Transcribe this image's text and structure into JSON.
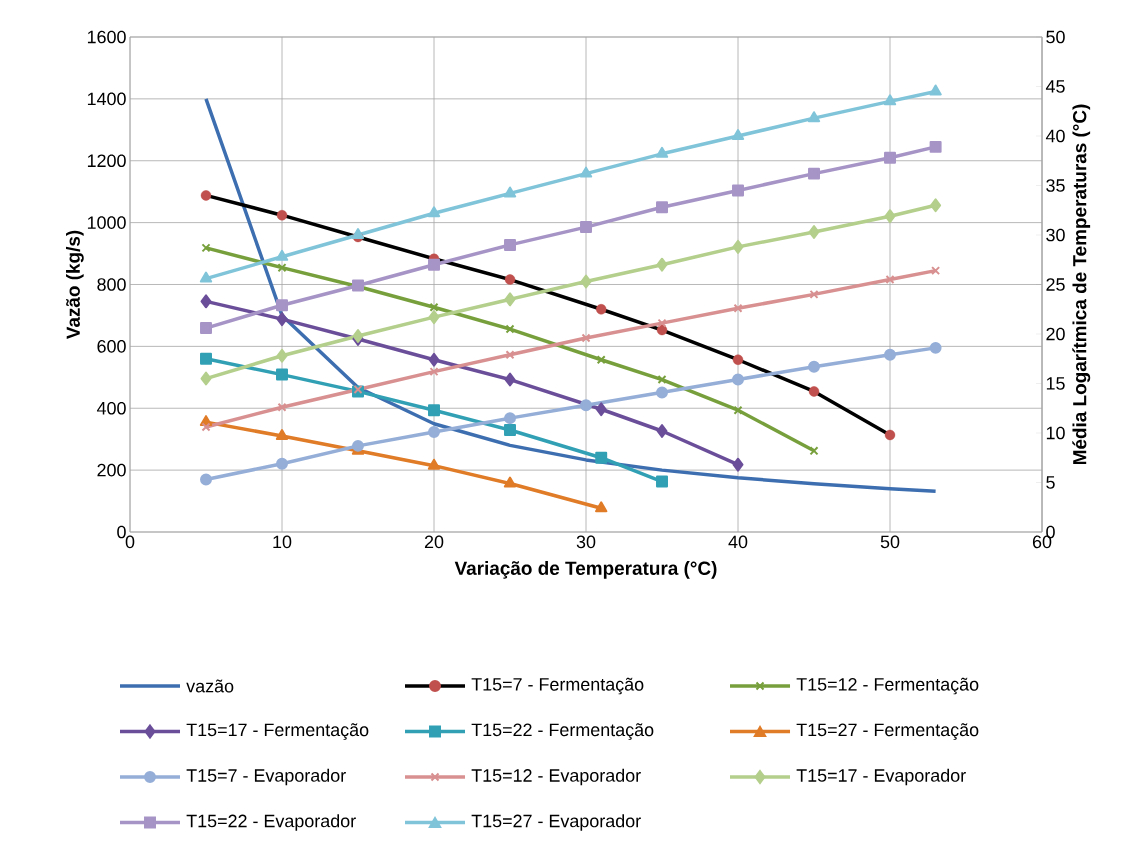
{
  "chart_data": {
    "type": "line",
    "xlabel": "Variação de Temperatura (°C)",
    "ylabel": "Vazão (kg/s)",
    "y2label": "Média Logarítmica de Temperaturas (°C)",
    "xlim": [
      0,
      60
    ],
    "xticks": [
      0,
      10,
      20,
      30,
      40,
      50,
      60
    ],
    "ylim": [
      0,
      1600
    ],
    "yticks": [
      0,
      200,
      400,
      600,
      800,
      1000,
      1200,
      1400,
      1600
    ],
    "y2lim": [
      0,
      50
    ],
    "y2ticks": [
      0,
      5,
      10,
      15,
      20,
      25,
      30,
      35,
      40,
      45,
      50
    ],
    "grid": true,
    "legend": "bottom",
    "x": [
      5,
      10,
      15,
      20,
      25,
      30,
      35,
      40,
      45,
      50,
      53
    ],
    "series": [
      {
        "name": "vazão",
        "color": "#3d6fb0",
        "marker": "none",
        "values": [
          1400,
          700,
          467,
          350,
          280,
          233,
          200,
          175,
          156,
          140,
          132
        ]
      },
      {
        "name": "T15=7 - Fermentação",
        "color": "#000000",
        "colors": [
          "#c0504d",
          "#c0504d",
          "#c0504d",
          "#c0504d",
          "#c0504d",
          "#c0504d",
          "#c0504d",
          "#c0504d",
          "#c0504d",
          "#c0504d"
        ],
        "marker": "circle",
        "axis": "y2",
        "x": [
          5,
          10,
          15,
          20,
          25,
          31,
          35,
          40,
          45,
          50
        ],
        "values": [
          34.0,
          32.0,
          29.8,
          27.6,
          25.5,
          22.5,
          20.4,
          17.4,
          14.2,
          9.8
        ]
      },
      {
        "name": "T15=12 - Fermentação",
        "color": "#77a03c",
        "marker": "cross",
        "axis": "y2",
        "x": [
          5,
          10,
          15,
          20,
          25,
          31,
          35,
          40,
          45
        ],
        "values": [
          28.7,
          26.7,
          24.8,
          22.7,
          20.5,
          17.4,
          15.4,
          12.3,
          8.2
        ]
      },
      {
        "name": "T15=17 - Fermentação",
        "color": "#6b4e9a",
        "marker": "diamond",
        "axis": "y2",
        "x": [
          5,
          10,
          15,
          20,
          25,
          31,
          35,
          40
        ],
        "values": [
          23.3,
          21.5,
          19.5,
          17.4,
          15.4,
          12.4,
          10.2,
          6.8
        ]
      },
      {
        "name": "T15=22 - Fermentação",
        "color": "#31a0b5",
        "marker": "square",
        "axis": "y2",
        "x": [
          5,
          10,
          15,
          20,
          25,
          31,
          35
        ],
        "values": [
          17.5,
          15.9,
          14.2,
          12.3,
          10.3,
          7.5,
          5.1
        ]
      },
      {
        "name": "T15=27 - Fermentação",
        "color": "#e07b27",
        "marker": "triangle",
        "axis": "y2",
        "x": [
          5,
          10,
          15,
          20,
          25,
          31
        ],
        "values": [
          11.1,
          9.7,
          8.2,
          6.7,
          4.9,
          2.4
        ]
      },
      {
        "name": "T15=7 - Evaporador",
        "color": "#94aed8",
        "marker": "circle",
        "axis": "y2",
        "values": [
          5.3,
          6.9,
          8.7,
          10.1,
          11.5,
          12.8,
          14.1,
          15.4,
          16.7,
          17.9,
          18.6
        ]
      },
      {
        "name": "T15=12 - Evaporador",
        "color": "#d89090",
        "marker": "cross",
        "axis": "y2",
        "values": [
          10.6,
          12.6,
          14.4,
          16.2,
          17.9,
          19.6,
          21.1,
          22.6,
          24.0,
          25.5,
          26.4
        ]
      },
      {
        "name": "T15=17 - Evaporador",
        "color": "#b3cf8b",
        "marker": "diamond",
        "axis": "y2",
        "values": [
          15.5,
          17.8,
          19.8,
          21.7,
          23.5,
          25.3,
          27.0,
          28.8,
          30.3,
          31.9,
          33.0
        ]
      },
      {
        "name": "T15=22 - Evaporador",
        "color": "#a694c6",
        "marker": "square",
        "axis": "y2",
        "values": [
          20.6,
          22.9,
          24.9,
          27.0,
          29.0,
          30.8,
          32.8,
          34.5,
          36.2,
          37.8,
          38.9
        ]
      },
      {
        "name": "T15=27 - Evaporador",
        "color": "#7fc4d9",
        "marker": "triangle",
        "axis": "y2",
        "values": [
          25.6,
          27.8,
          30.0,
          32.2,
          34.2,
          36.2,
          38.2,
          40.0,
          41.8,
          43.5,
          44.5
        ]
      }
    ]
  }
}
